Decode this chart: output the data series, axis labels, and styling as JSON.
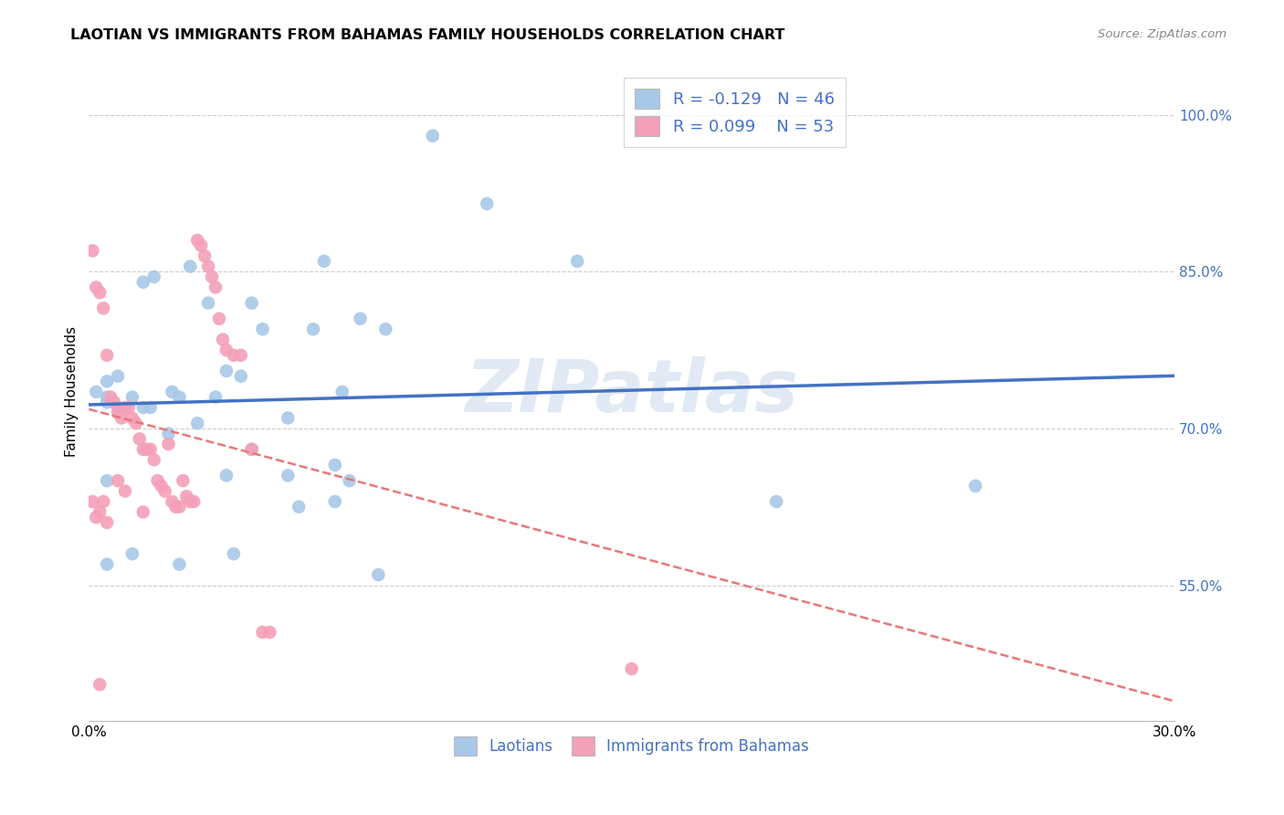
{
  "title": "LAOTIAN VS IMMIGRANTS FROM BAHAMAS FAMILY HOUSEHOLDS CORRELATION CHART",
  "source": "Source: ZipAtlas.com",
  "ylabel": "Family Households",
  "ytick_labels": [
    "55.0%",
    "70.0%",
    "85.0%",
    "100.0%"
  ],
  "ytick_values": [
    0.55,
    0.7,
    0.85,
    1.0
  ],
  "xlim": [
    0.0,
    0.3
  ],
  "ylim": [
    0.42,
    1.05
  ],
  "legend_label_blue": "Laotians",
  "legend_label_pink": "Immigrants from Bahamas",
  "color_blue": "#a8c8e8",
  "color_pink": "#f4a0b8",
  "color_blue_line": "#4472c4",
  "color_pink_line": "#e87878",
  "watermark": "ZIPatlas",
  "blue_x": [
    0.023,
    0.015,
    0.045,
    0.065,
    0.038,
    0.025,
    0.018,
    0.012,
    0.005,
    0.008,
    0.03,
    0.055,
    0.07,
    0.042,
    0.028,
    0.015,
    0.005,
    0.048,
    0.033,
    0.062,
    0.095,
    0.11,
    0.135,
    0.075,
    0.005,
    0.017,
    0.022,
    0.038,
    0.055,
    0.068,
    0.082,
    0.005,
    0.012,
    0.025,
    0.04,
    0.058,
    0.072,
    0.19,
    0.245,
    0.008,
    0.002,
    0.035,
    0.045,
    0.005,
    0.068,
    0.08
  ],
  "blue_y": [
    0.735,
    0.84,
    0.82,
    0.86,
    0.755,
    0.73,
    0.845,
    0.73,
    0.725,
    0.72,
    0.705,
    0.71,
    0.735,
    0.75,
    0.855,
    0.72,
    0.745,
    0.795,
    0.82,
    0.795,
    0.98,
    0.915,
    0.86,
    0.805,
    0.73,
    0.72,
    0.695,
    0.655,
    0.655,
    0.665,
    0.795,
    0.57,
    0.58,
    0.57,
    0.58,
    0.625,
    0.65,
    0.63,
    0.645,
    0.75,
    0.735,
    0.73,
    0.68,
    0.65,
    0.63,
    0.56
  ],
  "pink_x": [
    0.001,
    0.002,
    0.003,
    0.004,
    0.005,
    0.006,
    0.007,
    0.008,
    0.009,
    0.01,
    0.011,
    0.012,
    0.013,
    0.014,
    0.015,
    0.016,
    0.017,
    0.018,
    0.019,
    0.02,
    0.021,
    0.022,
    0.023,
    0.024,
    0.025,
    0.026,
    0.027,
    0.028,
    0.029,
    0.03,
    0.031,
    0.032,
    0.033,
    0.034,
    0.035,
    0.036,
    0.037,
    0.038,
    0.04,
    0.042,
    0.045,
    0.048,
    0.05,
    0.001,
    0.003,
    0.005,
    0.008,
    0.01,
    0.015,
    0.002,
    0.004,
    0.15,
    0.003
  ],
  "pink_y": [
    0.87,
    0.835,
    0.83,
    0.815,
    0.77,
    0.73,
    0.725,
    0.715,
    0.71,
    0.72,
    0.72,
    0.71,
    0.705,
    0.69,
    0.68,
    0.68,
    0.68,
    0.67,
    0.65,
    0.645,
    0.64,
    0.685,
    0.63,
    0.625,
    0.625,
    0.65,
    0.635,
    0.63,
    0.63,
    0.88,
    0.875,
    0.865,
    0.855,
    0.845,
    0.835,
    0.805,
    0.785,
    0.775,
    0.77,
    0.77,
    0.68,
    0.505,
    0.505,
    0.63,
    0.62,
    0.61,
    0.65,
    0.64,
    0.62,
    0.615,
    0.63,
    0.47,
    0.455
  ]
}
